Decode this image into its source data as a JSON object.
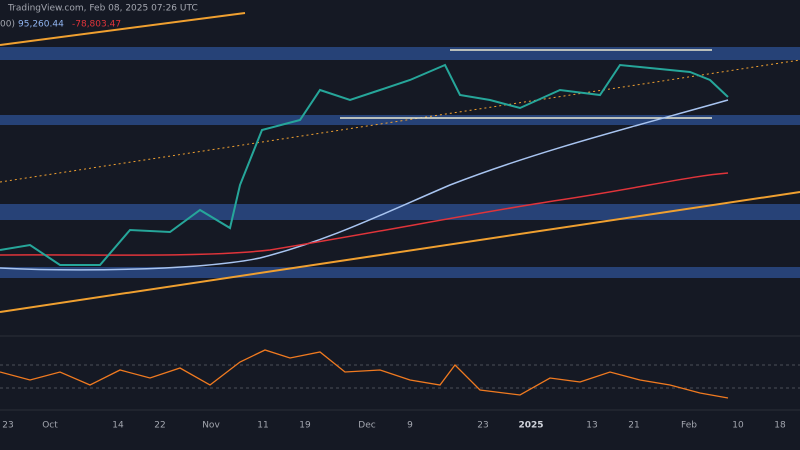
{
  "header": {
    "source": "TradingView.com, Feb 08, 2025 07:26 UTC",
    "indicator_suffix": "00)",
    "value_1": "95,260.44",
    "value_2": "-78,803.47"
  },
  "time_axis": {
    "labels": [
      "23",
      "Oct",
      "14",
      "22",
      "Nov",
      "11",
      "19",
      "Dec",
      "9",
      "23",
      "2025",
      "13",
      "21",
      "Feb",
      "10",
      "18"
    ]
  }
}
